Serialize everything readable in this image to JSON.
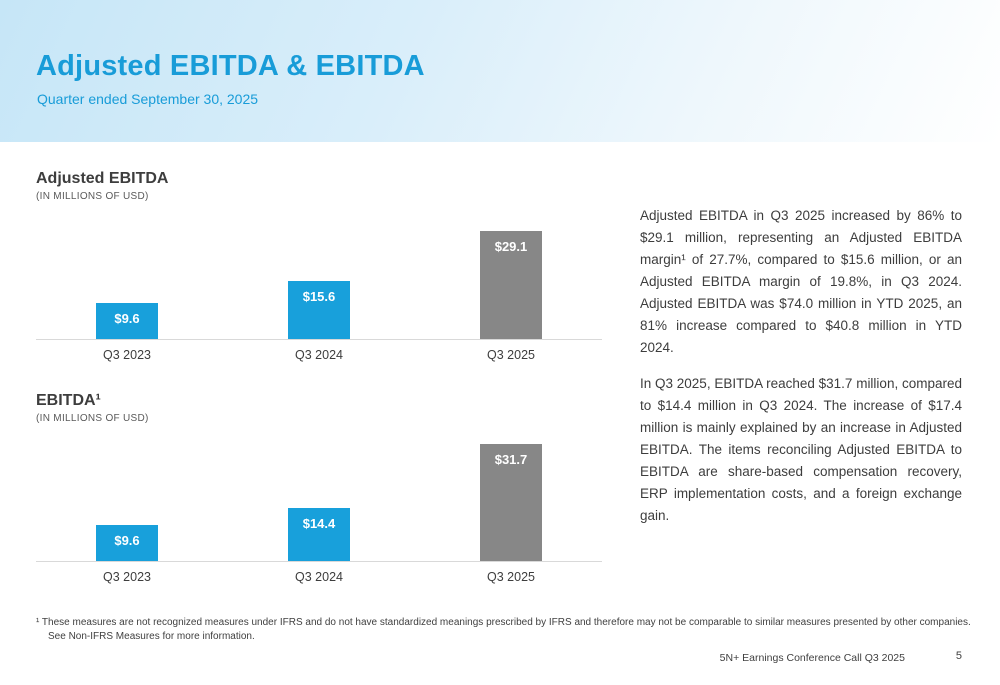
{
  "meta": {
    "accent_blue": "#189cd8",
    "bar_blue": "#18a0db",
    "bar_gray": "#878787"
  },
  "header": {
    "title": "Adjusted EBITDA & EBITDA",
    "subtitle": "Quarter ended September 30, 2025"
  },
  "chart_data": [
    {
      "type": "bar",
      "title": "Adjusted EBITDA",
      "subtitle": "(IN MILLIONS OF USD)",
      "categories": [
        "Q3 2023",
        "Q3 2024",
        "Q3 2025"
      ],
      "values": [
        9.6,
        15.6,
        29.1
      ],
      "labels": [
        "$9.6",
        "$15.6",
        "$29.1"
      ],
      "bar_colors": [
        "#18a0db",
        "#18a0db",
        "#878787"
      ],
      "ylabel": "Millions of USD",
      "ylim": [
        0,
        33
      ],
      "grid": false,
      "legend": "none",
      "value_labels_position": "inside-top"
    },
    {
      "type": "bar",
      "title": "EBITDA¹",
      "subtitle": "(IN MILLIONS OF USD)",
      "categories": [
        "Q3 2023",
        "Q3 2024",
        "Q3 2025"
      ],
      "values": [
        9.6,
        14.4,
        31.7
      ],
      "labels": [
        "$9.6",
        "$14.4",
        "$31.7"
      ],
      "bar_colors": [
        "#18a0db",
        "#18a0db",
        "#878787"
      ],
      "ylabel": "Millions of USD",
      "ylim": [
        0,
        33
      ],
      "grid": false,
      "legend": "none",
      "value_labels_position": "inside-top"
    }
  ],
  "commentary": {
    "paragraph1": "Adjusted EBITDA in Q3 2025 increased by 86% to $29.1 million, representing an Adjusted EBITDA margin¹ of 27.7%, compared to $15.6 million, or an Adjusted EBITDA margin of 19.8%, in Q3 2024. Adjusted EBITDA was $74.0 million in YTD 2025, an 81% increase compared to $40.8 million in YTD 2024.",
    "paragraph2": "In Q3 2025, EBITDA reached $31.7 million, compared to $14.4 million in Q3 2024. The increase of $17.4 million is mainly explained by an increase in Adjusted EBITDA. The items reconciling Adjusted EBITDA to EBITDA are share-based compensation recovery, ERP implementation costs, and a foreign exchange gain."
  },
  "footnote": {
    "text": "¹ These measures are not recognized measures under IFRS and do not have standardized meanings prescribed by IFRS and therefore may not be comparable to similar measures presented by other companies. See Non-IFRS Measures for more information."
  },
  "footer": {
    "left": "5N+ Earnings Conference Call Q3 2025",
    "page": "5"
  }
}
